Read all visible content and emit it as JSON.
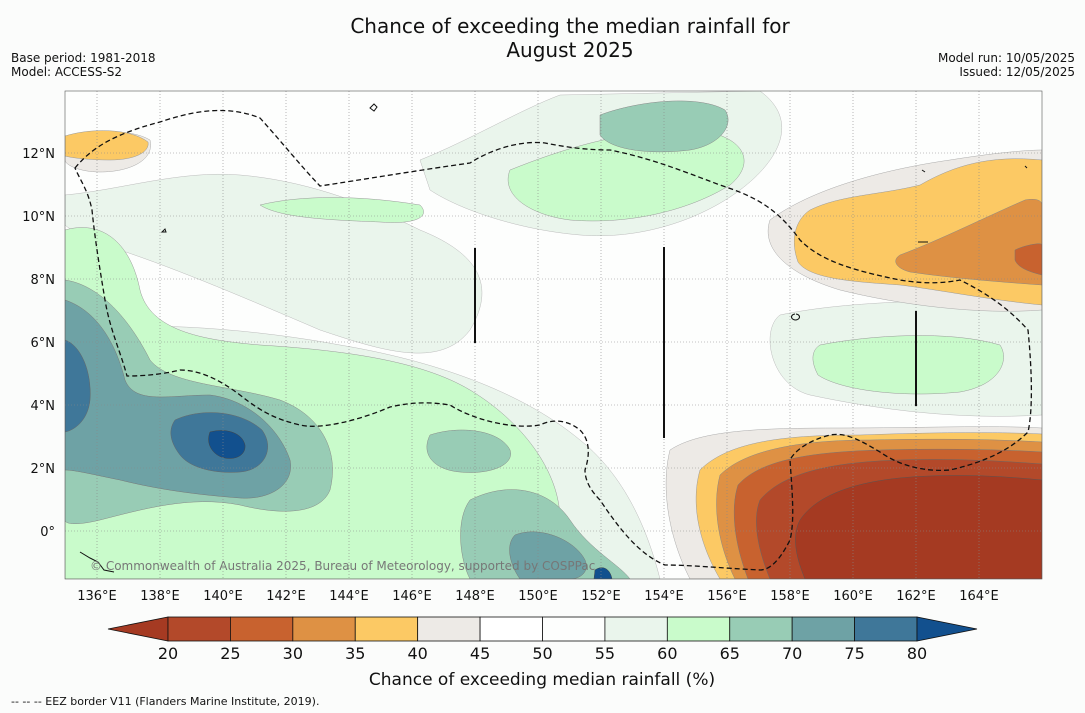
{
  "title_line1": "Chance of exceeding the median rainfall for",
  "title_line2": "August 2025",
  "base_period": "Base period: 1981-2018",
  "model": "Model: ACCESS-S2",
  "model_run": "Model run: 10/05/2025",
  "issued": "Issued: 12/05/2025",
  "copyright": "© Commonwealth of Australia 2025, Bureau of Meteorology, supported by COSPPac",
  "footnote": "--  --  -- EEZ border V11 (Flanders Marine Institute, 2019).",
  "colorbar": {
    "label": "Chance of exceeding median rainfall (%)",
    "ticks": [
      "20",
      "25",
      "30",
      "35",
      "40",
      "45",
      "50",
      "55",
      "60",
      "65",
      "70",
      "75",
      "80"
    ],
    "colors": [
      "#a53a22",
      "#b3492a",
      "#c8622f",
      "#de9144",
      "#fcc964",
      "#edeae6",
      "#ffffff",
      "#fdfefd",
      "#eaf5ec",
      "#c9fbcb",
      "#98ccb5",
      "#6ea2a5",
      "#3f7799",
      "#12508e"
    ]
  },
  "map": {
    "lon_labels": [
      "136°E",
      "138°E",
      "140°E",
      "142°E",
      "144°E",
      "146°E",
      "148°E",
      "150°E",
      "152°E",
      "154°E",
      "156°E",
      "158°E",
      "160°E",
      "162°E",
      "164°E"
    ],
    "lat_labels": [
      "12°N",
      "10°N",
      "8°N",
      "6°N",
      "4°N",
      "2°N",
      "0°"
    ]
  }
}
